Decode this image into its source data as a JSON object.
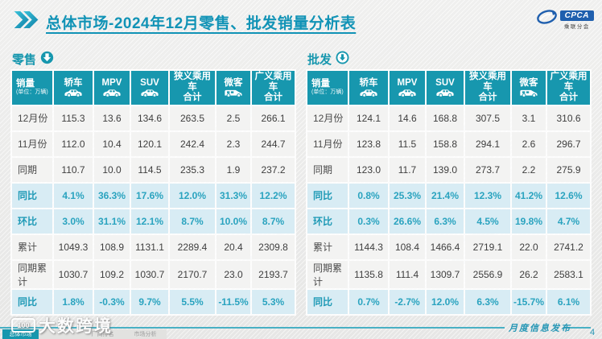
{
  "title": "总体市场-2024年12月零售、批发销量分析表",
  "logo": {
    "name": "CPCA",
    "subtitle": "乘联分会"
  },
  "colors": {
    "accent_teal": "#1797ae",
    "title_teal": "#1193b6",
    "highlight_row_bg": "#d8ecf4",
    "highlight_text": "#2aa3bf",
    "normal_row_bg": "#f3f3f2",
    "logo_blue": "#1f5fae"
  },
  "tables": [
    {
      "section": "零售",
      "section_icon": "down-arrow-filled-circle-icon",
      "corner_header": "销量",
      "corner_unit": "(单位：万辆)",
      "columns": [
        {
          "label": "轿车",
          "icon": "car-icon"
        },
        {
          "label": "MPV",
          "icon": "car-icon"
        },
        {
          "label": "SUV",
          "icon": "car-icon"
        },
        {
          "label": "狭义乘用车\n合计",
          "icon": null
        },
        {
          "label": "微客",
          "icon": "van-icon"
        },
        {
          "label": "广义乘用车\n合计",
          "icon": null
        }
      ],
      "rows": [
        {
          "label": "12月份",
          "type": "normal",
          "values": [
            "115.3",
            "13.6",
            "134.6",
            "263.5",
            "2.5",
            "266.1"
          ]
        },
        {
          "label": "11月份",
          "type": "normal",
          "values": [
            "112.0",
            "10.4",
            "120.1",
            "242.4",
            "2.3",
            "244.7"
          ]
        },
        {
          "label": "同期",
          "type": "normal",
          "values": [
            "110.7",
            "10.0",
            "114.5",
            "235.3",
            "1.9",
            "237.2"
          ]
        },
        {
          "label": "同比",
          "type": "highlight",
          "values": [
            "4.1%",
            "36.3%",
            "17.6%",
            "12.0%",
            "31.3%",
            "12.2%"
          ]
        },
        {
          "label": "环比",
          "type": "highlight",
          "values": [
            "3.0%",
            "31.1%",
            "12.1%",
            "8.7%",
            "10.0%",
            "8.7%"
          ]
        },
        {
          "label": "累计",
          "type": "normal",
          "values": [
            "1049.3",
            "108.9",
            "1131.1",
            "2289.4",
            "20.4",
            "2309.8"
          ]
        },
        {
          "label": "同期累计",
          "type": "normal",
          "values": [
            "1030.7",
            "109.2",
            "1030.7",
            "2170.7",
            "23.0",
            "2193.7"
          ]
        },
        {
          "label": "同比",
          "type": "highlight",
          "values": [
            "1.8%",
            "-0.3%",
            "9.7%",
            "5.5%",
            "-11.5%",
            "5.3%"
          ]
        }
      ]
    },
    {
      "section": "批发",
      "section_icon": "down-arrow-ring-circle-icon",
      "corner_header": "销量",
      "corner_unit": "(单位：万辆)",
      "columns": [
        {
          "label": "轿车",
          "icon": "car-icon"
        },
        {
          "label": "MPV",
          "icon": "car-icon"
        },
        {
          "label": "SUV",
          "icon": "car-icon"
        },
        {
          "label": "狭义乘用车\n合计",
          "icon": null
        },
        {
          "label": "微客",
          "icon": "van-icon"
        },
        {
          "label": "广义乘用车\n合计",
          "icon": null
        }
      ],
      "rows": [
        {
          "label": "12月份",
          "type": "normal",
          "values": [
            "124.1",
            "14.6",
            "168.8",
            "307.5",
            "3.1",
            "310.6"
          ]
        },
        {
          "label": "11月份",
          "type": "normal",
          "values": [
            "123.8",
            "11.5",
            "158.8",
            "294.1",
            "2.6",
            "296.7"
          ]
        },
        {
          "label": "同期",
          "type": "normal",
          "values": [
            "123.0",
            "11.7",
            "139.0",
            "273.7",
            "2.2",
            "275.9"
          ]
        },
        {
          "label": "同比",
          "type": "highlight",
          "values": [
            "0.8%",
            "25.3%",
            "21.4%",
            "12.3%",
            "41.2%",
            "12.6%"
          ]
        },
        {
          "label": "环比",
          "type": "highlight",
          "values": [
            "0.3%",
            "26.6%",
            "6.3%",
            "4.5%",
            "19.8%",
            "4.7%"
          ]
        },
        {
          "label": "累计",
          "type": "normal",
          "values": [
            "1144.3",
            "108.4",
            "1466.4",
            "2719.1",
            "22.0",
            "2741.2"
          ]
        },
        {
          "label": "同期累计",
          "type": "normal",
          "values": [
            "1135.8",
            "111.4",
            "1309.7",
            "2556.9",
            "26.2",
            "2583.1"
          ]
        },
        {
          "label": "同比",
          "type": "highlight",
          "values": [
            "0.7%",
            "-2.7%",
            "12.0%",
            "6.3%",
            "-15.7%",
            "6.1%"
          ]
        }
      ]
    }
  ],
  "footer": {
    "ribbon": "月度信息发布",
    "page": "4",
    "tabs": [
      {
        "label": "总体市场",
        "active": true
      },
      {
        "label": "",
        "active": false
      },
      {
        "label": "厂商排名",
        "active": false
      },
      {
        "label": "市场分析",
        "active": false
      }
    ]
  },
  "watermark": "大数跨境"
}
